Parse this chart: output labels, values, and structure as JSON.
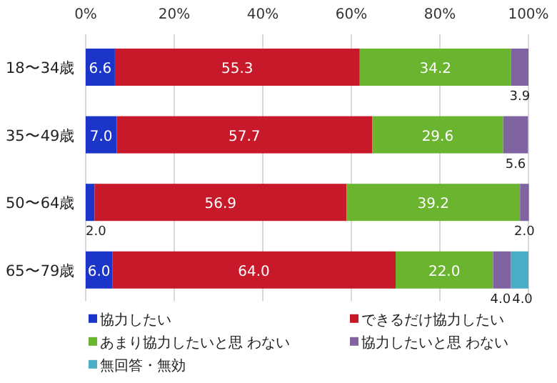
{
  "chart_data": {
    "type": "bar",
    "orientation": "horizontal",
    "stacked": true,
    "grid": "x",
    "legend": "bottom",
    "categories": [
      "18〜34歳",
      "35〜49歳",
      "50〜64歳",
      "65〜79歳"
    ],
    "xlim": [
      0,
      100
    ],
    "xticks": [
      {
        "value": 0,
        "label": "0%"
      },
      {
        "value": 20,
        "label": "20%"
      },
      {
        "value": 40,
        "label": "40%"
      },
      {
        "value": 60,
        "label": "60%"
      },
      {
        "value": 80,
        "label": "80%"
      },
      {
        "value": 100,
        "label": "100%"
      }
    ],
    "series": [
      {
        "name": "協力したい",
        "color": "#1a35c8",
        "values": [
          6.6,
          7.0,
          2.0,
          6.0
        ],
        "value_labels": [
          "6.6",
          "7.0",
          "2.0",
          "6.0"
        ]
      },
      {
        "name": "できるだけ協力したい",
        "color": "#c8192b",
        "values": [
          55.3,
          57.7,
          56.9,
          64.0
        ],
        "value_labels": [
          "55.3",
          "57.7",
          "56.9",
          "64.0"
        ]
      },
      {
        "name": "あまり協力したいと思 わない",
        "color": "#6ab42f",
        "values": [
          34.2,
          29.6,
          39.2,
          22.0
        ],
        "value_labels": [
          "34.2",
          "29.6",
          "39.2",
          "22.0"
        ]
      },
      {
        "name": "協力したいと思 わない",
        "color": "#8064a2",
        "values": [
          3.9,
          5.6,
          2.0,
          4.0
        ],
        "value_labels": [
          "3.9",
          "5.6",
          "2.0",
          "4.0"
        ]
      },
      {
        "name": "無回答・無効",
        "color": "#4bacc6",
        "values": [
          null,
          null,
          null,
          4.0
        ],
        "value_labels": [
          null,
          null,
          null,
          "4.0"
        ]
      }
    ]
  }
}
